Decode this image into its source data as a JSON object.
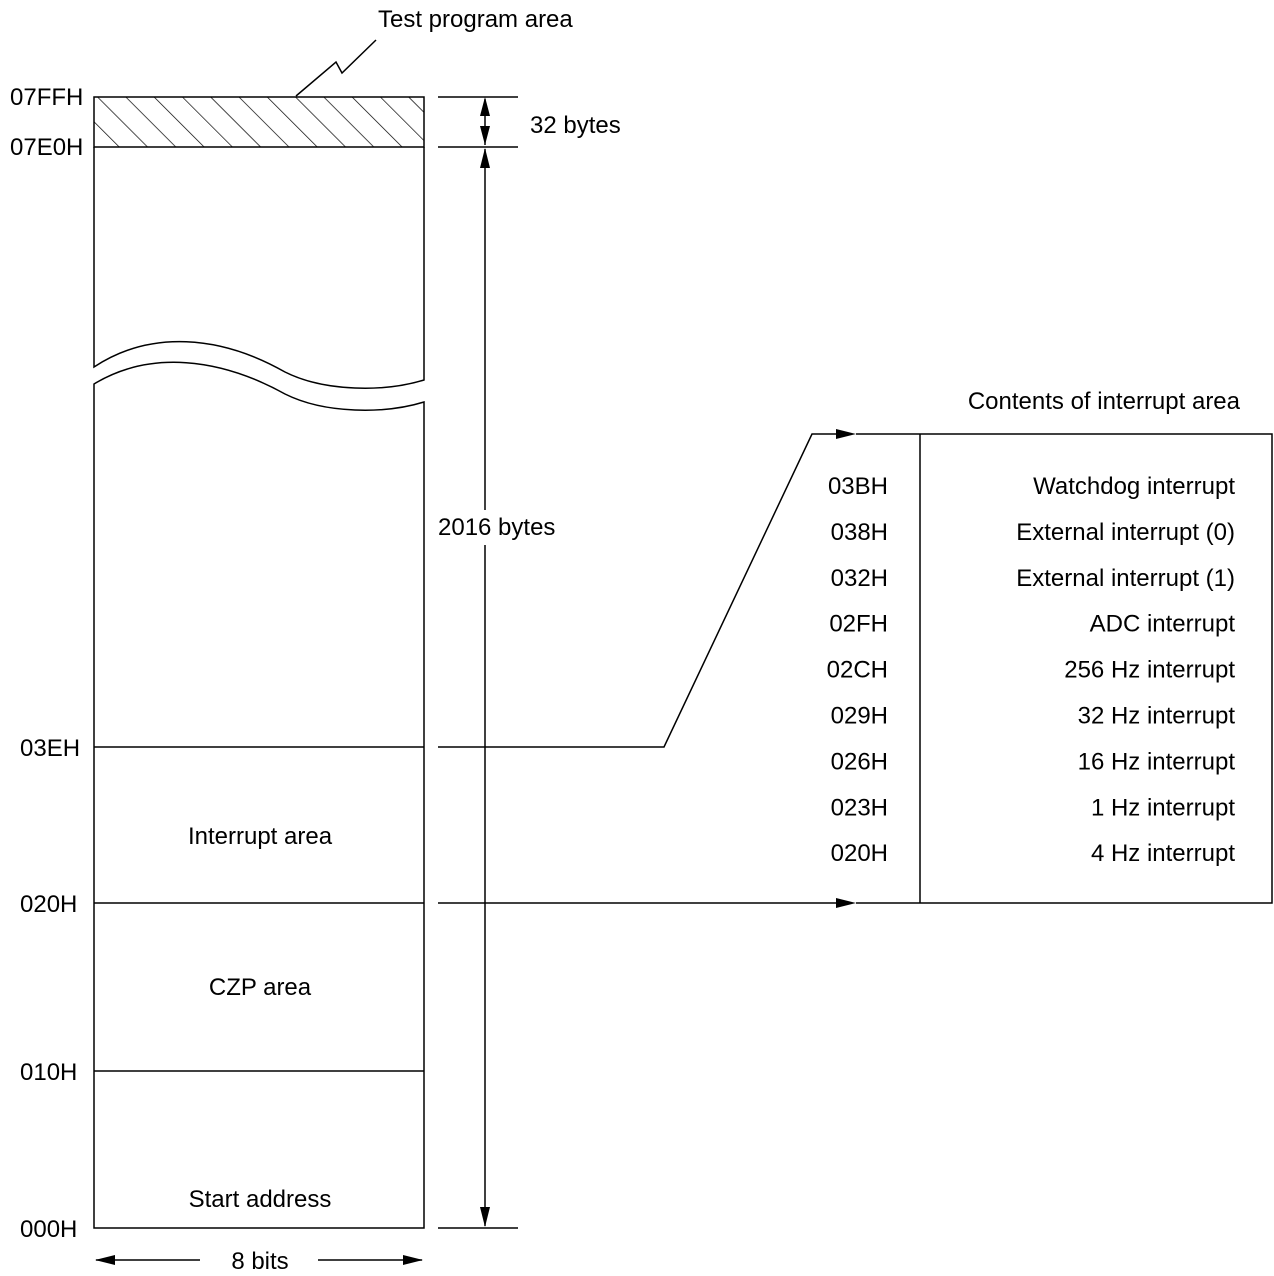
{
  "memory_map": {
    "test_program_area_label": "Test program area",
    "addresses": {
      "a07FF": "07FFH",
      "a07E0": "07E0H",
      "a03E": "03EH",
      "a020": "020H",
      "a010": "010H",
      "a000": "000H"
    },
    "regions": {
      "interrupt_area": "Interrupt area",
      "czp_area": "CZP area",
      "start_address": "Start address"
    },
    "dimensions": {
      "test_size": "32 bytes",
      "main_size": "2016 bytes",
      "width": "8 bits"
    }
  },
  "interrupt_table": {
    "title": "Contents of interrupt area",
    "rows": [
      {
        "address": "03BH",
        "name": "Watchdog interrupt"
      },
      {
        "address": "038H",
        "name": "External interrupt (0)"
      },
      {
        "address": "032H",
        "name": "External interrupt (1)"
      },
      {
        "address": "02FH",
        "name": "ADC interrupt"
      },
      {
        "address": "02CH",
        "name": "256 Hz interrupt"
      },
      {
        "address": "029H",
        "name": "32 Hz interrupt"
      },
      {
        "address": "026H",
        "name": "16 Hz interrupt"
      },
      {
        "address": "023H",
        "name": "1 Hz interrupt"
      },
      {
        "address": "020H",
        "name": "4 Hz interrupt"
      }
    ]
  }
}
